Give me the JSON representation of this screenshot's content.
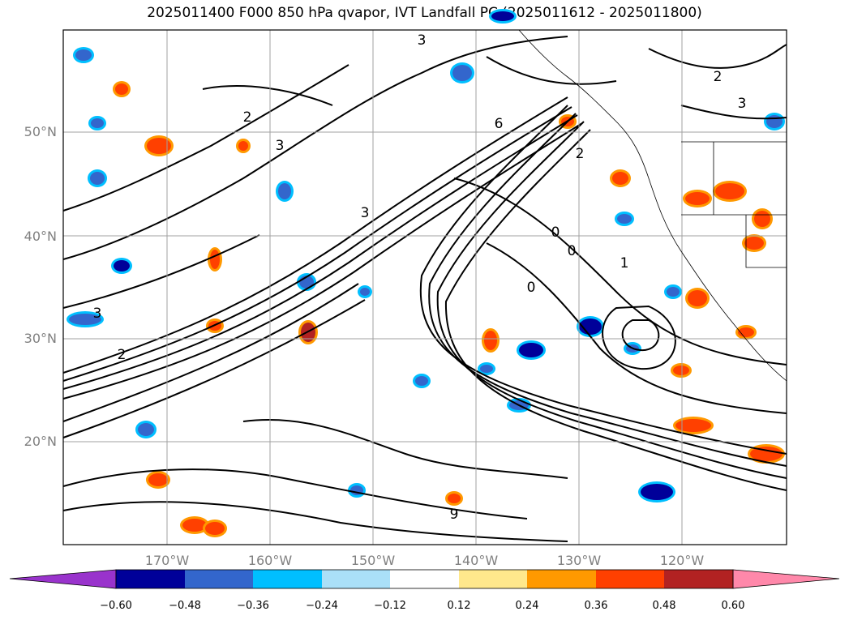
{
  "title": "2025011400 F000 850 hPa qvapor, IVT Landfall PC (2025011612 - 2025011800)",
  "lat_labels": [
    "50°N",
    "40°N",
    "30°N",
    "20°N"
  ],
  "lon_labels": [
    "170°W",
    "160°W",
    "150°W",
    "140°W",
    "130°W",
    "120°W"
  ],
  "colorbar": {
    "tick_labels": [
      "−0.60",
      "−0.48",
      "−0.36",
      "−0.24",
      "−0.12",
      "0.12",
      "0.24",
      "0.36",
      "0.48",
      "0.60"
    ],
    "colors": [
      "#9933cc",
      "#000099",
      "#3366cc",
      "#00bfff",
      "#aae0f8",
      "#ffffff",
      "#ffe88c",
      "#ff9900",
      "#ff4000",
      "#b22222",
      "#ff88aa"
    ],
    "extend": "both"
  },
  "contour_labels": [
    "3",
    "2",
    "2",
    "3",
    "6",
    "3",
    "0",
    "1",
    "3",
    "2",
    "2",
    "3",
    "0",
    "0",
    "9"
  ],
  "colors": {
    "grid": "#a0a0a0",
    "contour": "#000000",
    "axis_label": "#808080"
  }
}
